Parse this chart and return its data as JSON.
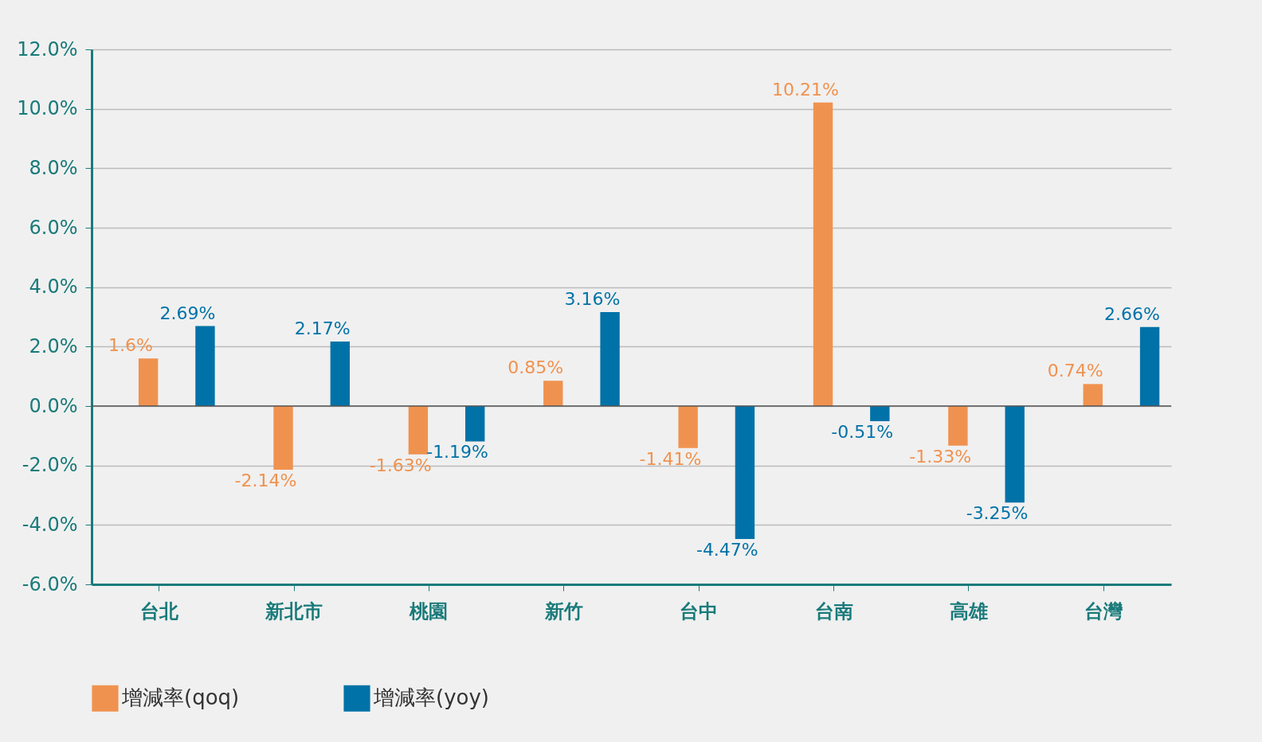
{
  "chart_data": {
    "type": "bar",
    "categories": [
      "台北",
      "新北市",
      "桃園",
      "新竹",
      "台中",
      "台南",
      "高雄",
      "台灣"
    ],
    "series": [
      {
        "name": "增減率(qoq)",
        "color": "#f0924f",
        "values": [
          1.6,
          -2.14,
          -1.63,
          0.85,
          -1.41,
          10.21,
          -1.33,
          0.74
        ],
        "value_labels": [
          "1.6%",
          "-2.14%",
          "-1.63%",
          "0.85%",
          "-1.41%",
          "10.21%",
          "-1.33%",
          "0.74%"
        ]
      },
      {
        "name": "增減率(yoy)",
        "color": "#0072a8",
        "values": [
          2.69,
          2.17,
          -1.19,
          3.16,
          -4.47,
          -0.51,
          -3.25,
          2.66
        ],
        "value_labels": [
          "2.69%",
          "2.17%",
          "-1.19%",
          "3.16%",
          "-4.47%",
          "-0.51%",
          "-3.25%",
          "2.66%"
        ]
      }
    ],
    "ylim": [
      -6,
      12
    ],
    "yticks": [
      {
        "value": -6,
        "label": "-6.0%"
      },
      {
        "value": -4,
        "label": "-4.0%"
      },
      {
        "value": -2,
        "label": "-2.0%"
      },
      {
        "value": 0,
        "label": "0.0%"
      },
      {
        "value": 2,
        "label": "2.0%"
      },
      {
        "value": 4,
        "label": "4.0%"
      },
      {
        "value": 6,
        "label": "6.0%"
      },
      {
        "value": 8,
        "label": "8.0%"
      },
      {
        "value": 10,
        "label": "10.0%"
      },
      {
        "value": 12,
        "label": "12.0%"
      }
    ],
    "ref_lines": [
      {
        "axis": "y",
        "value": 0,
        "color": "#555555"
      }
    ],
    "grid": "y",
    "legend": "bottom"
  }
}
